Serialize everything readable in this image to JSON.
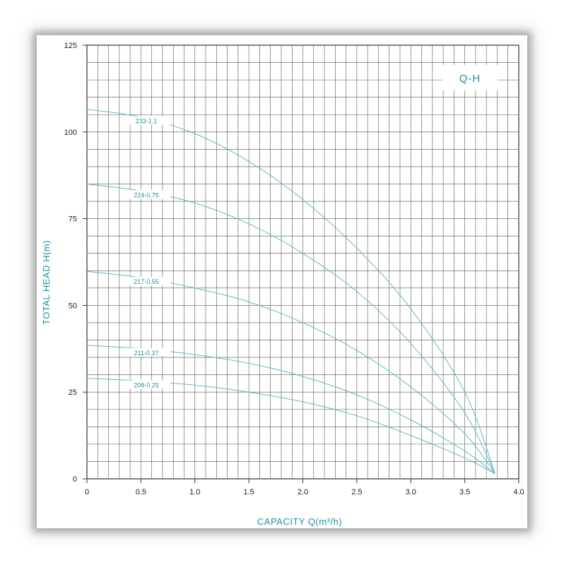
{
  "chart_data": {
    "type": "line",
    "title": "Q-H",
    "xlabel": "CAPACITY Q(m³/h)",
    "ylabel": "TOTAL HEAD H(m)",
    "xlim": [
      0,
      4.0
    ],
    "ylim": [
      0,
      125
    ],
    "x_ticks": [
      "0",
      "0.5",
      "1.0",
      "1.5",
      "2.0",
      "2.5",
      "3.0",
      "3.5",
      "4.0"
    ],
    "y_ticks": [
      "0",
      "25",
      "50",
      "75",
      "100",
      "125"
    ],
    "grid": true,
    "line_color": "#5fb8c6",
    "series": [
      {
        "name": "233-1.1",
        "x": [
          0,
          0.5,
          1.0,
          1.5,
          2.0,
          2.5,
          3.0,
          3.5,
          3.78
        ],
        "y": [
          106.5,
          104.3,
          99.5,
          91.5,
          80.5,
          66.5,
          49.0,
          25.0,
          1.5
        ]
      },
      {
        "name": "224-0.75",
        "x": [
          0,
          0.5,
          1.0,
          1.5,
          2.0,
          2.5,
          3.0,
          3.5,
          3.78
        ],
        "y": [
          85.0,
          83.0,
          79.5,
          73.5,
          65.0,
          54.0,
          39.0,
          19.0,
          1.5
        ]
      },
      {
        "name": "217-0.55",
        "x": [
          0,
          0.5,
          1.0,
          1.5,
          2.0,
          2.5,
          3.0,
          3.5,
          3.78
        ],
        "y": [
          59.8,
          58.0,
          55.0,
          51.0,
          45.0,
          37.0,
          26.5,
          13.0,
          1.5
        ]
      },
      {
        "name": "211-0.37",
        "x": [
          0,
          0.5,
          1.0,
          1.5,
          2.0,
          2.5,
          3.0,
          3.5,
          3.78
        ],
        "y": [
          38.5,
          37.5,
          35.8,
          33.3,
          29.5,
          24.2,
          17.0,
          8.0,
          1.5
        ]
      },
      {
        "name": "208-0.25",
        "x": [
          0,
          0.5,
          1.0,
          1.5,
          2.0,
          2.5,
          3.0,
          3.5,
          3.78
        ],
        "y": [
          29.0,
          28.2,
          27.0,
          25.0,
          22.2,
          18.2,
          12.5,
          6.0,
          1.5
        ]
      }
    ]
  }
}
